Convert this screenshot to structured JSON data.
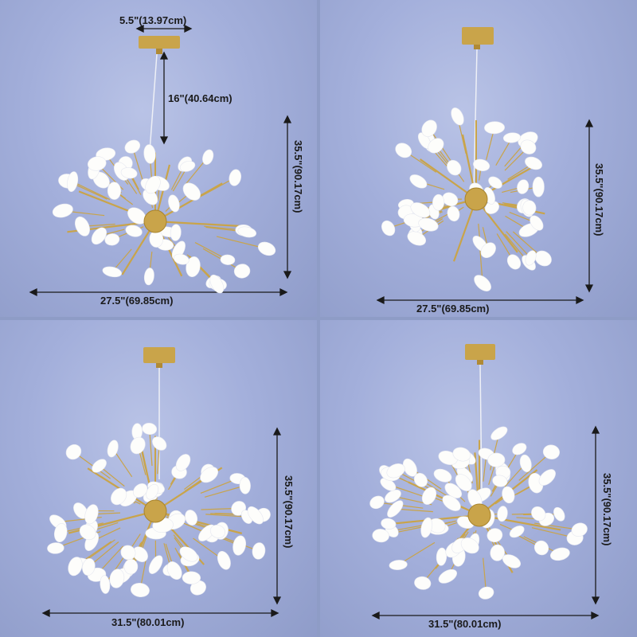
{
  "colors": {
    "background": "#a3afdb",
    "frame": "#c9a44a",
    "shade": "#fdfdfb",
    "dimension_line": "#1a1a1a"
  },
  "panels": [
    {
      "top_width": "5.5\"(13.97cm)",
      "drop": "16\"(40.64cm)",
      "height": "35.5\"(90.17cm)",
      "width": "27.5\"(69.85cm)",
      "lights": 45
    },
    {
      "height": "35.5\"(90.17cm)",
      "width": "27.5\"(69.85cm)",
      "lights": 45
    },
    {
      "height": "35.5\"(90.17cm)",
      "width": "31.5\"(80.01cm)",
      "lights": 63
    },
    {
      "height": "35.5\"(90.17cm)",
      "width": "31.5\"(80.01cm)",
      "lights": 63
    }
  ]
}
